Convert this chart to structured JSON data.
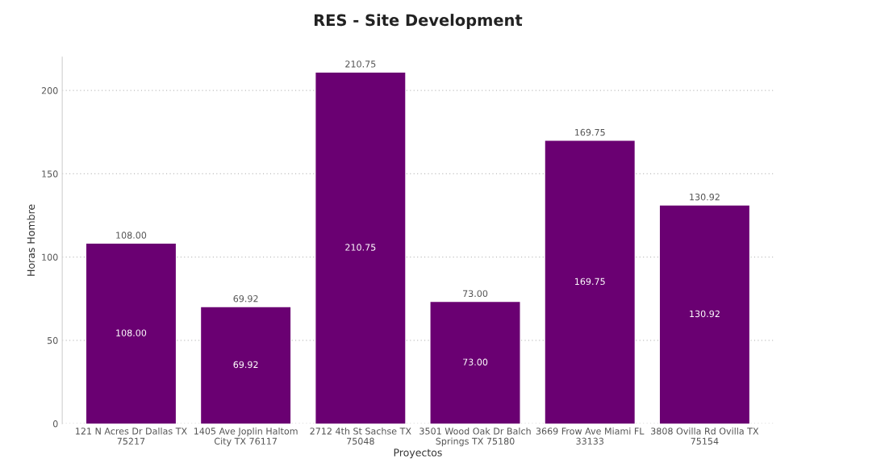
{
  "chart_data": {
    "type": "bar",
    "title": "RES - Site Development",
    "xlabel": "Proyectos",
    "ylabel": "Horas Hombre",
    "categories": [
      "121 N Acres Dr Dallas TX 75217",
      "1405 Ave Joplin Haltom City TX 76117",
      "2712 4th St Sachse TX 75048",
      "3501 Wood Oak Dr Balch Springs TX 75180",
      "3669 Frow Ave Miami FL 33133",
      "3808 Ovilla Rd Ovilla TX 75154"
    ],
    "values": [
      108.0,
      69.92,
      210.75,
      73.0,
      169.75,
      130.92
    ],
    "value_labels": [
      "108.00",
      "69.92",
      "210.75",
      "73.00",
      "169.75",
      "130.92"
    ],
    "color": "#6a0072",
    "ylim": [
      0,
      220
    ],
    "yticks": [
      0,
      50,
      100,
      150,
      200
    ],
    "grid": "y"
  }
}
